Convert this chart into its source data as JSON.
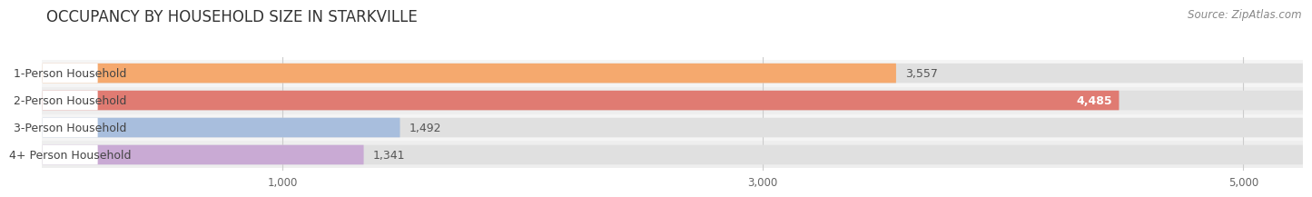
{
  "title": "OCCUPANCY BY HOUSEHOLD SIZE IN STARKVILLE",
  "source": "Source: ZipAtlas.com",
  "categories": [
    "1-Person Household",
    "2-Person Household",
    "3-Person Household",
    "4+ Person Household"
  ],
  "values": [
    3557,
    4485,
    1492,
    1341
  ],
  "bar_colors": [
    "#f5a96e",
    "#e07b72",
    "#a8bedd",
    "#c9aad4"
  ],
  "bar_row_bg": [
    "#f5f5f5",
    "#eeeeee",
    "#f5f5f5",
    "#eeeeee"
  ],
  "xlim": [
    0,
    5250
  ],
  "xticks": [
    1000,
    3000,
    5000
  ],
  "xtick_labels": [
    "1,000",
    "3,000",
    "5,000"
  ],
  "background_color": "#ffffff",
  "title_fontsize": 12,
  "label_fontsize": 9,
  "value_fontsize": 9,
  "source_fontsize": 8.5
}
